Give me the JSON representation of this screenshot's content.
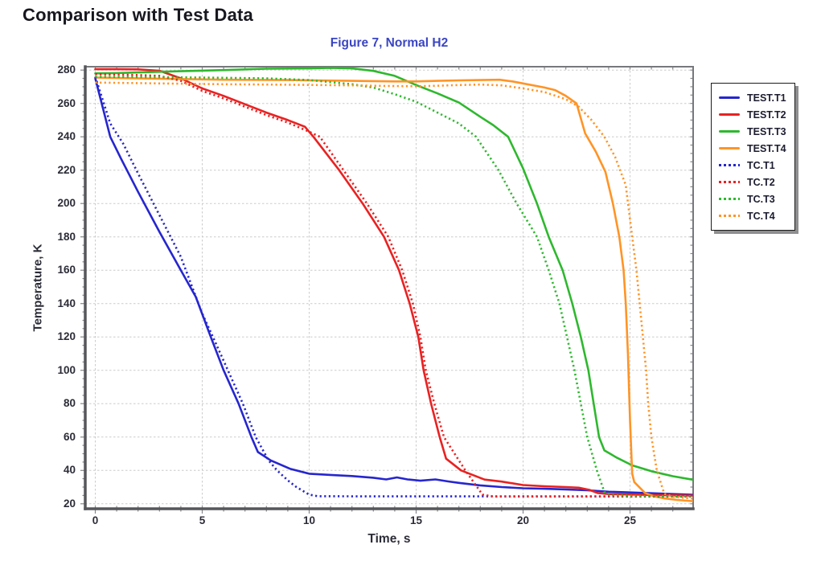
{
  "page": {
    "title": "Comparison with Test Data"
  },
  "ui_colors": {
    "page_title": "#17171f",
    "figure_title": "#3a45c4",
    "tick_labels": "#2c2c38",
    "gridlines": "#cbcbcb",
    "plot_border": "#77787b",
    "heavy_axes": "#56575a",
    "legend_border": "#1c1c1c",
    "legend_shadow": "#8f8f92"
  },
  "chart_data": {
    "type": "line",
    "title": "Figure 7, Normal H2",
    "xlabel": "Time, s",
    "ylabel": "Temperature, K",
    "xlim": [
      -0.47,
      27.95
    ],
    "ylim": [
      17,
      282
    ],
    "x_ticks_major": [
      0,
      5,
      10,
      15,
      20,
      25
    ],
    "x_minor_step": 1,
    "y_ticks_major": [
      20,
      40,
      60,
      80,
      100,
      120,
      140,
      160,
      180,
      200,
      220,
      240,
      260,
      280
    ],
    "y_minor_step": 5,
    "grid": "major-dashed",
    "legend_position": "outside-right",
    "series": [
      {
        "name": "TEST.T1",
        "color": "#2626cf",
        "style": "solid",
        "points": [
          [
            0,
            275
          ],
          [
            0.7,
            240
          ],
          [
            1.2,
            227
          ],
          [
            2,
            207
          ],
          [
            3,
            183
          ],
          [
            4,
            160
          ],
          [
            4.7,
            144
          ],
          [
            5.4,
            120
          ],
          [
            6.0,
            100
          ],
          [
            6.7,
            80
          ],
          [
            7.3,
            60
          ],
          [
            7.6,
            51
          ],
          [
            8.2,
            46
          ],
          [
            9.1,
            41
          ],
          [
            10,
            38
          ],
          [
            11,
            37.3
          ],
          [
            12,
            36.6
          ],
          [
            13,
            35.6
          ],
          [
            13.6,
            34.6
          ],
          [
            14.1,
            35.8
          ],
          [
            14.6,
            34.6
          ],
          [
            15.2,
            33.8
          ],
          [
            15.9,
            34.6
          ],
          [
            16.5,
            33.4
          ],
          [
            17,
            32.5
          ],
          [
            18,
            31
          ],
          [
            19,
            30
          ],
          [
            20,
            29.3
          ],
          [
            21,
            29
          ],
          [
            22,
            28.6
          ],
          [
            23,
            28.1
          ],
          [
            24,
            27.2
          ],
          [
            25,
            26.8
          ],
          [
            26,
            26.3
          ],
          [
            27,
            25.8
          ],
          [
            27.9,
            25.4
          ]
        ]
      },
      {
        "name": "TEST.T2",
        "color": "#e82222",
        "style": "solid",
        "points": [
          [
            0,
            280.5
          ],
          [
            1,
            280.5
          ],
          [
            2,
            280.4
          ],
          [
            3,
            279.6
          ],
          [
            4,
            275
          ],
          [
            5,
            269
          ],
          [
            6,
            264.5
          ],
          [
            7,
            259.5
          ],
          [
            8,
            254.5
          ],
          [
            9,
            250
          ],
          [
            9.8,
            246
          ],
          [
            10.2,
            240
          ],
          [
            11.4,
            220
          ],
          [
            12.5,
            200
          ],
          [
            13.5,
            180
          ],
          [
            14.2,
            160
          ],
          [
            14.7,
            140
          ],
          [
            15.1,
            120
          ],
          [
            15.35,
            100
          ],
          [
            15.7,
            80
          ],
          [
            16.1,
            60
          ],
          [
            16.4,
            47
          ],
          [
            17.1,
            40
          ],
          [
            18.2,
            34.5
          ],
          [
            19,
            33.3
          ],
          [
            20,
            31.2
          ],
          [
            21,
            30.5
          ],
          [
            22,
            30
          ],
          [
            22.6,
            29.6
          ],
          [
            23.1,
            28.3
          ],
          [
            23.5,
            26.4
          ],
          [
            24,
            25.8
          ],
          [
            25,
            25.6
          ],
          [
            26,
            25.3
          ],
          [
            27,
            25.1
          ],
          [
            27.9,
            24.9
          ]
        ]
      },
      {
        "name": "TEST.T3",
        "color": "#2eb82e",
        "style": "solid",
        "points": [
          [
            0,
            278
          ],
          [
            1,
            278.2
          ],
          [
            2,
            278.6
          ],
          [
            4,
            279.3
          ],
          [
            6,
            280
          ],
          [
            8,
            280.8
          ],
          [
            10,
            281
          ],
          [
            11,
            281.3
          ],
          [
            12,
            281
          ],
          [
            13,
            279.5
          ],
          [
            14,
            276.5
          ],
          [
            15,
            271
          ],
          [
            16,
            266
          ],
          [
            17,
            260.5
          ],
          [
            18,
            252
          ],
          [
            18.6,
            247
          ],
          [
            19.3,
            240
          ],
          [
            20,
            221
          ],
          [
            20.65,
            200
          ],
          [
            21.2,
            180
          ],
          [
            21.85,
            160
          ],
          [
            22.3,
            140
          ],
          [
            22.7,
            120
          ],
          [
            23.05,
            100
          ],
          [
            23.3,
            80
          ],
          [
            23.55,
            60
          ],
          [
            23.8,
            52
          ],
          [
            24.4,
            47.5
          ],
          [
            25.1,
            43
          ],
          [
            26,
            39.5
          ],
          [
            27,
            36.5
          ],
          [
            27.9,
            34.5
          ]
        ]
      },
      {
        "name": "TEST.T4",
        "color": "#ff9426",
        "style": "solid",
        "points": [
          [
            0,
            275.5
          ],
          [
            3,
            274.8
          ],
          [
            6,
            274.2
          ],
          [
            9,
            274
          ],
          [
            12,
            273.5
          ],
          [
            14,
            273.2
          ],
          [
            15,
            273.2
          ],
          [
            16,
            273.5
          ],
          [
            17,
            273.8
          ],
          [
            18,
            274
          ],
          [
            18.9,
            274.2
          ],
          [
            19.5,
            273.2
          ],
          [
            20,
            272
          ],
          [
            21,
            269.5
          ],
          [
            21.5,
            268
          ],
          [
            22,
            264.5
          ],
          [
            22.5,
            260
          ],
          [
            22.9,
            242
          ],
          [
            23.4,
            231
          ],
          [
            23.85,
            219
          ],
          [
            24.2,
            200
          ],
          [
            24.5,
            180
          ],
          [
            24.7,
            160
          ],
          [
            24.8,
            140
          ],
          [
            24.9,
            110
          ],
          [
            25.0,
            70
          ],
          [
            25.1,
            38
          ],
          [
            25.2,
            33
          ],
          [
            25.7,
            26.5
          ],
          [
            26.1,
            24.5
          ],
          [
            26.6,
            23.2
          ],
          [
            27.2,
            22.3
          ],
          [
            27.9,
            21.6
          ]
        ]
      },
      {
        "name": "TC.T1",
        "color": "#2626cf",
        "style": "dotted",
        "points": [
          [
            0,
            276
          ],
          [
            0.7,
            248
          ],
          [
            1.3,
            236
          ],
          [
            2,
            218
          ],
          [
            3,
            193
          ],
          [
            4,
            168
          ],
          [
            5,
            134
          ],
          [
            5.5,
            120
          ],
          [
            6.2,
            100
          ],
          [
            6.9,
            80
          ],
          [
            7.5,
            60
          ],
          [
            8.1,
            46
          ],
          [
            8.5,
            40
          ],
          [
            9.0,
            34
          ],
          [
            9.4,
            30
          ],
          [
            10,
            25.5
          ],
          [
            10.4,
            24.5
          ],
          [
            13,
            24.4
          ],
          [
            16,
            24.4
          ],
          [
            19,
            24.4
          ],
          [
            22,
            24.4
          ],
          [
            25,
            24.4
          ],
          [
            27.9,
            24.4
          ]
        ]
      },
      {
        "name": "TC.T2",
        "color": "#e82222",
        "style": "dotted",
        "points": [
          [
            0,
            277.5
          ],
          [
            2,
            277
          ],
          [
            3,
            276.5
          ],
          [
            4,
            273.5
          ],
          [
            5,
            267.5
          ],
          [
            6,
            263
          ],
          [
            7,
            258
          ],
          [
            8,
            253
          ],
          [
            9,
            248.5
          ],
          [
            10,
            243
          ],
          [
            10.5,
            240
          ],
          [
            11.6,
            220
          ],
          [
            12.7,
            200
          ],
          [
            13.7,
            180
          ],
          [
            14.35,
            160
          ],
          [
            14.85,
            140
          ],
          [
            15.2,
            120
          ],
          [
            15.45,
            100
          ],
          [
            15.85,
            80
          ],
          [
            16.3,
            60
          ],
          [
            17.3,
            40
          ],
          [
            18.1,
            25.5
          ],
          [
            18.6,
            24.3
          ],
          [
            21,
            24.3
          ],
          [
            24,
            24.3
          ],
          [
            27.9,
            24.3
          ]
        ]
      },
      {
        "name": "TC.T3",
        "color": "#2eb82e",
        "style": "dotted",
        "points": [
          [
            0,
            276
          ],
          [
            2,
            275.8
          ],
          [
            5,
            275.5
          ],
          [
            8,
            275
          ],
          [
            10,
            274
          ],
          [
            12,
            271.5
          ],
          [
            13,
            269.5
          ],
          [
            14,
            265.5
          ],
          [
            15,
            261
          ],
          [
            16,
            254.5
          ],
          [
            17,
            248
          ],
          [
            17.8,
            240
          ],
          [
            18.85,
            220
          ],
          [
            19.7,
            200
          ],
          [
            20.65,
            180
          ],
          [
            21.2,
            160
          ],
          [
            21.7,
            140
          ],
          [
            22.05,
            120
          ],
          [
            22.4,
            100
          ],
          [
            22.7,
            80
          ],
          [
            23.0,
            60
          ],
          [
            23.45,
            40
          ],
          [
            23.8,
            27
          ],
          [
            24.2,
            25.2
          ],
          [
            25,
            24.8
          ],
          [
            26,
            24.6
          ],
          [
            27.9,
            24.5
          ]
        ]
      },
      {
        "name": "TC.T4",
        "color": "#ff9426",
        "style": "dotted",
        "points": [
          [
            0,
            272.5
          ],
          [
            3,
            272
          ],
          [
            6,
            271.5
          ],
          [
            9,
            271.2
          ],
          [
            12,
            270.8
          ],
          [
            14,
            270.4
          ],
          [
            15,
            270.3
          ],
          [
            16,
            270.6
          ],
          [
            17,
            271
          ],
          [
            18,
            271.3
          ],
          [
            19,
            270.8
          ],
          [
            20,
            269
          ],
          [
            21,
            266.8
          ],
          [
            22,
            262.5
          ],
          [
            22.6,
            258
          ],
          [
            23.2,
            250
          ],
          [
            23.8,
            240
          ],
          [
            24.3,
            228
          ],
          [
            24.8,
            211
          ],
          [
            25.1,
            180
          ],
          [
            25.3,
            160
          ],
          [
            25.45,
            140
          ],
          [
            25.6,
            120
          ],
          [
            25.75,
            100
          ],
          [
            25.85,
            80
          ],
          [
            26.0,
            60
          ],
          [
            26.25,
            40
          ],
          [
            26.6,
            26
          ],
          [
            27,
            24.2
          ],
          [
            27.5,
            23.6
          ],
          [
            27.9,
            23.1
          ]
        ]
      }
    ]
  }
}
